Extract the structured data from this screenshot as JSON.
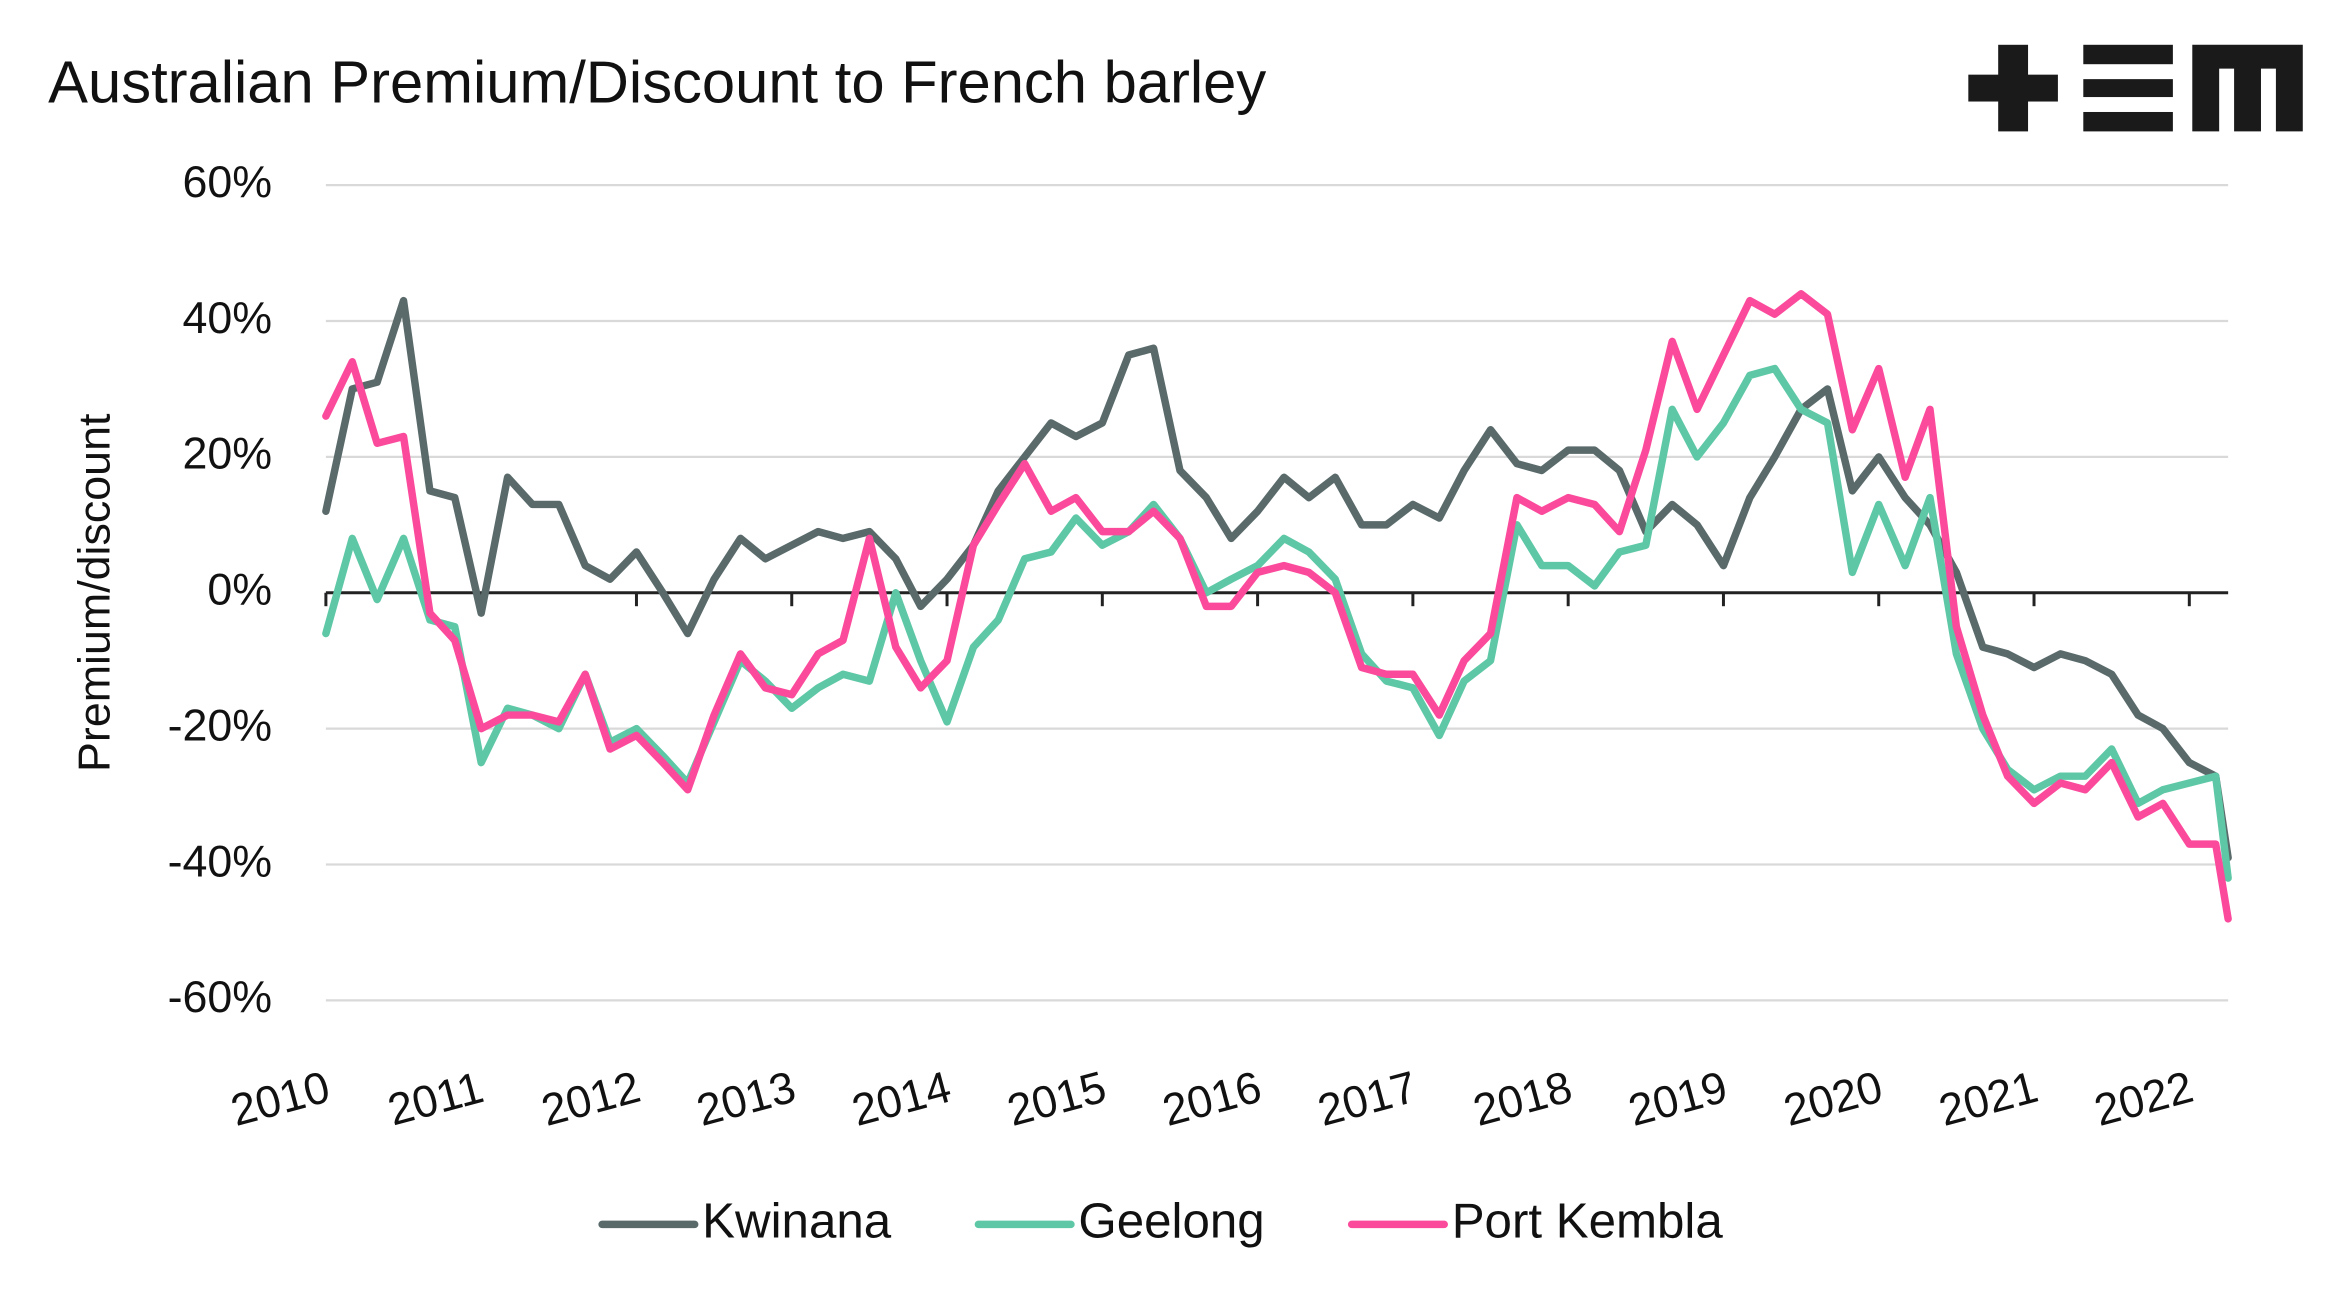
{
  "chart_data": {
    "type": "line",
    "title": "Australian Premium/Discount to French barley",
    "y_axis_label": "Premium/discount",
    "x": [
      2010.0,
      2010.17,
      2010.33,
      2010.5,
      2010.67,
      2010.83,
      2011.0,
      2011.17,
      2011.33,
      2011.5,
      2011.67,
      2011.83,
      2012.0,
      2012.17,
      2012.33,
      2012.5,
      2012.67,
      2012.83,
      2013.0,
      2013.17,
      2013.33,
      2013.5,
      2013.67,
      2013.83,
      2014.0,
      2014.17,
      2014.33,
      2014.5,
      2014.67,
      2014.83,
      2015.0,
      2015.17,
      2015.33,
      2015.5,
      2015.67,
      2015.83,
      2016.0,
      2016.17,
      2016.33,
      2016.5,
      2016.67,
      2016.83,
      2017.0,
      2017.17,
      2017.33,
      2017.5,
      2017.67,
      2017.83,
      2018.0,
      2018.17,
      2018.33,
      2018.5,
      2018.67,
      2018.83,
      2019.0,
      2019.17,
      2019.33,
      2019.5,
      2019.67,
      2019.83,
      2020.0,
      2020.17,
      2020.33,
      2020.5,
      2020.67,
      2020.83,
      2021.0,
      2021.17,
      2021.33,
      2021.5,
      2021.67,
      2021.83,
      2022.0,
      2022.17,
      2022.25
    ],
    "series": [
      {
        "name": "Kwinana",
        "color": "#5a6a6a",
        "values": [
          12,
          30,
          31,
          43,
          15,
          14,
          -3,
          17,
          13,
          13,
          4,
          2,
          6,
          0,
          -6,
          2,
          8,
          5,
          7,
          9,
          8,
          9,
          5,
          -2,
          2,
          7,
          15,
          20,
          25,
          23,
          25,
          35,
          36,
          18,
          14,
          8,
          12,
          17,
          14,
          17,
          10,
          10,
          13,
          11,
          18,
          24,
          19,
          18,
          21,
          21,
          18,
          9,
          13,
          10,
          4,
          14,
          20,
          27,
          30,
          15,
          20,
          14,
          10,
          3,
          -8,
          -9,
          -11,
          -9,
          -10,
          -12,
          -18,
          -20,
          -25,
          -27,
          -39
        ]
      },
      {
        "name": "Geelong",
        "color": "#5ec8a6",
        "values": [
          -6,
          8,
          -1,
          8,
          -4,
          -5,
          -25,
          -17,
          -18,
          -20,
          -12,
          -22,
          -20,
          -24,
          -28,
          -19,
          -10,
          -13,
          -17,
          -14,
          -12,
          -13,
          0,
          -10,
          -19,
          -8,
          -4,
          5,
          6,
          11,
          7,
          9,
          13,
          8,
          0,
          2,
          4,
          8,
          6,
          2,
          -9,
          -13,
          -14,
          -21,
          -13,
          -10,
          10,
          4,
          4,
          1,
          6,
          7,
          27,
          20,
          25,
          32,
          33,
          27,
          25,
          3,
          13,
          4,
          14,
          -9,
          -20,
          -26,
          -29,
          -27,
          -27,
          -23,
          -31,
          -29,
          -28,
          -27,
          -42
        ]
      },
      {
        "name": "Port Kembla",
        "color": "#fb4a9c",
        "values": [
          26,
          34,
          22,
          23,
          -3,
          -7,
          -20,
          -18,
          -18,
          -19,
          -12,
          -23,
          -21,
          -25,
          -29,
          -18,
          -9,
          -14,
          -15,
          -9,
          -7,
          8,
          -8,
          -14,
          -10,
          7,
          13,
          19,
          12,
          14,
          9,
          9,
          12,
          8,
          -2,
          -2,
          3,
          4,
          3,
          0,
          -11,
          -12,
          -12,
          -18,
          -10,
          -6,
          14,
          12,
          14,
          13,
          9,
          21,
          37,
          27,
          35,
          43,
          41,
          44,
          41,
          24,
          33,
          17,
          27,
          -5,
          -18,
          -27,
          -31,
          -28,
          -29,
          -25,
          -33,
          -31,
          -37,
          -37,
          -48
        ]
      }
    ],
    "xlim": [
      2010,
      2022.25
    ],
    "xticks": [
      2010,
      2011,
      2012,
      2013,
      2014,
      2015,
      2016,
      2017,
      2018,
      2019,
      2020,
      2021,
      2022
    ],
    "ylim": [
      -60,
      60
    ],
    "yticks": [
      {
        "value": -60,
        "label": "-60%"
      },
      {
        "value": -40,
        "label": "-40%"
      },
      {
        "value": -20,
        "label": "-20%"
      },
      {
        "value": 0,
        "label": "0%"
      },
      {
        "value": 20,
        "label": "20%"
      },
      {
        "value": 40,
        "label": "40%"
      },
      {
        "value": 60,
        "label": "60%"
      }
    ],
    "grid": true,
    "legend": "bottom"
  }
}
